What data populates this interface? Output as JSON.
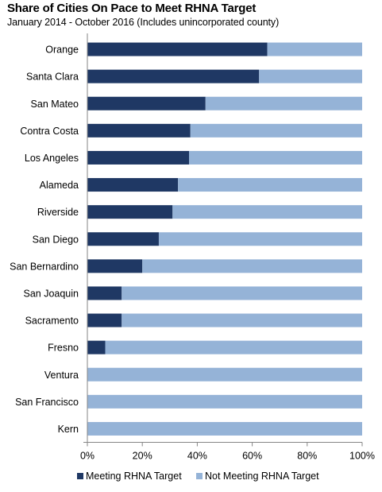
{
  "chart_data": {
    "type": "bar",
    "orientation": "horizontal",
    "stacked": true,
    "title": "Share of Cities On Pace to Meet RHNA Target",
    "subtitle": "January 2014 - October 2016  (Includes unincorporated county)",
    "categories": [
      "Orange",
      "Santa Clara",
      "San Mateo",
      "Contra Costa",
      "Los Angeles",
      "Alameda",
      "Riverside",
      "San Diego",
      "San Bernardino",
      "San Joaquin",
      "Sacramento",
      "Fresno",
      "Ventura",
      "San Francisco",
      "Kern"
    ],
    "series": [
      {
        "name": "Meeting RHNA Target",
        "color": "#1f3864",
        "values": [
          65.5,
          62.5,
          43,
          37.5,
          37,
          33,
          31,
          26,
          20,
          12.5,
          12.5,
          6.5,
          0,
          0,
          0
        ]
      },
      {
        "name": "Not Meeting RHNA Target",
        "color": "#95b3d7",
        "values": [
          34.5,
          37.5,
          57,
          62.5,
          63,
          67,
          69,
          74,
          80,
          87.5,
          87.5,
          93.5,
          100,
          100,
          100
        ]
      }
    ],
    "xlim": [
      0,
      100
    ],
    "x_ticks": [
      "0%",
      "20%",
      "40%",
      "60%",
      "80%",
      "100%"
    ],
    "legend_position": "bottom",
    "grid": false
  }
}
